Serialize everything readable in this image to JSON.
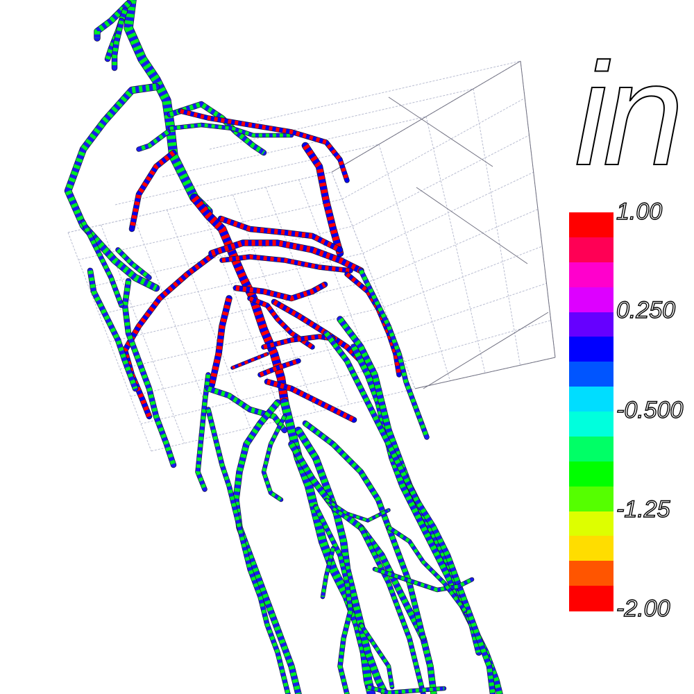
{
  "title": "in",
  "colorbar": {
    "colors": [
      "#ff0000",
      "#ff0055",
      "#ff00cc",
      "#dd00ff",
      "#6600ff",
      "#0000ff",
      "#0055ff",
      "#00ddff",
      "#00ffdd",
      "#00ff66",
      "#00ff00",
      "#55ff00",
      "#ddff00",
      "#ffdd00",
      "#ff5500",
      "#ff0000"
    ],
    "labels": [
      "1.00",
      "0.250",
      "-0.500",
      "-1.25",
      "-2.00"
    ]
  },
  "scene": {
    "bbox_line_color": "#b8bcd0",
    "bbox_edge_color": "#707080",
    "vessel_colors": {
      "positive": [
        "#ff0000",
        "#0000ee"
      ],
      "negative": [
        "#00ee22",
        "#1a1aee"
      ]
    }
  }
}
